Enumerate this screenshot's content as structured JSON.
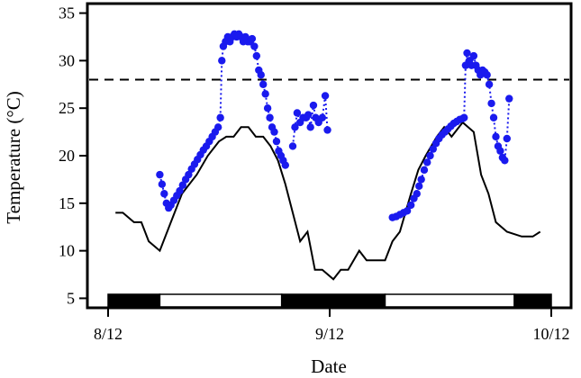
{
  "chart_data": {
    "type": "scatter",
    "xlabel": "Date",
    "ylabel": "Temperature (°C)",
    "xlim": [
      0,
      60
    ],
    "ylim": [
      4,
      36
    ],
    "x_ticks": [
      {
        "x": 0,
        "label": "8/12"
      },
      {
        "x": 30,
        "label": "9/12"
      },
      {
        "x": 60,
        "label": "10/12"
      }
    ],
    "y_ticks": [
      5,
      10,
      15,
      20,
      25,
      30,
      35
    ],
    "reference_line": {
      "y": 28,
      "style": "dashed"
    },
    "colors": {
      "line": "#000000",
      "points": "#1a1aee",
      "bar_dark": "#000000",
      "bar_light": "#ffffff"
    },
    "black_line": [
      [
        1,
        14
      ],
      [
        2,
        14
      ],
      [
        3.5,
        13
      ],
      [
        4.5,
        13
      ],
      [
        5.5,
        11
      ],
      [
        7,
        10
      ],
      [
        8.5,
        13
      ],
      [
        10,
        16
      ],
      [
        12,
        18
      ],
      [
        13.5,
        20
      ],
      [
        15,
        21.5
      ],
      [
        16,
        22
      ],
      [
        17,
        22
      ],
      [
        18,
        23
      ],
      [
        19,
        23
      ],
      [
        20,
        22
      ],
      [
        21,
        22
      ],
      [
        22,
        21
      ],
      [
        23,
        19.5
      ],
      [
        24,
        17
      ],
      [
        25,
        14
      ],
      [
        26,
        11
      ],
      [
        27,
        12
      ],
      [
        28,
        8
      ],
      [
        29,
        8
      ],
      [
        30.5,
        7
      ],
      [
        31.5,
        8
      ],
      [
        32.5,
        8
      ],
      [
        34,
        10
      ],
      [
        35,
        9
      ],
      [
        36,
        9
      ],
      [
        37.5,
        9
      ],
      [
        38.5,
        11
      ],
      [
        39.5,
        12
      ],
      [
        41,
        16
      ],
      [
        42,
        18.5
      ],
      [
        43,
        20
      ],
      [
        44.5,
        22
      ],
      [
        45.5,
        23
      ],
      [
        46.5,
        22
      ],
      [
        48,
        23.5
      ],
      [
        49.5,
        22.5
      ],
      [
        50.5,
        18
      ],
      [
        51.5,
        16
      ],
      [
        52.5,
        13
      ],
      [
        54,
        12
      ],
      [
        56,
        11.5
      ],
      [
        57.5,
        11.5
      ],
      [
        58.5,
        12
      ]
    ],
    "point_series": [
      {
        "points": [
          [
            7,
            18
          ],
          [
            7.3,
            17
          ],
          [
            7.6,
            16
          ],
          [
            7.9,
            15
          ],
          [
            8.2,
            14.5
          ],
          [
            8.5,
            14.8
          ],
          [
            8.9,
            15.3
          ],
          [
            9.3,
            15.8
          ],
          [
            9.7,
            16.3
          ],
          [
            10.1,
            16.9
          ],
          [
            10.5,
            17.5
          ],
          [
            10.9,
            18
          ],
          [
            11.3,
            18.6
          ],
          [
            11.7,
            19.1
          ],
          [
            12.1,
            19.6
          ],
          [
            12.5,
            20.1
          ],
          [
            12.9,
            20.6
          ],
          [
            13.3,
            21
          ],
          [
            13.7,
            21.5
          ],
          [
            14.1,
            22
          ],
          [
            14.5,
            22.5
          ],
          [
            14.9,
            23
          ],
          [
            15.2,
            24
          ],
          [
            15.4,
            30
          ],
          [
            15.6,
            31.5
          ],
          [
            15.9,
            32
          ],
          [
            16.2,
            32.5
          ],
          [
            16.5,
            32
          ],
          [
            16.8,
            32.5
          ],
          [
            17.1,
            32.8
          ],
          [
            17.4,
            32.5
          ],
          [
            17.7,
            32.8
          ],
          [
            18,
            32.5
          ],
          [
            18.3,
            32
          ],
          [
            18.6,
            32.5
          ],
          [
            18.9,
            32
          ],
          [
            19.2,
            32
          ],
          [
            19.5,
            32.3
          ],
          [
            19.8,
            31.5
          ],
          [
            20.1,
            30.5
          ],
          [
            20.4,
            29
          ],
          [
            20.7,
            28.5
          ],
          [
            21,
            27.5
          ],
          [
            21.3,
            26.5
          ],
          [
            21.6,
            25
          ],
          [
            21.9,
            24
          ],
          [
            22.2,
            23
          ],
          [
            22.5,
            22.5
          ],
          [
            22.8,
            21.5
          ],
          [
            23.1,
            20.5
          ],
          [
            23.4,
            20
          ],
          [
            23.7,
            19.5
          ],
          [
            24,
            19
          ]
        ]
      },
      {
        "points": [
          [
            25,
            21
          ],
          [
            25.3,
            23
          ],
          [
            25.6,
            24.5
          ],
          [
            26,
            23.5
          ],
          [
            26.4,
            24
          ],
          [
            26.8,
            24
          ],
          [
            27.1,
            24.3
          ],
          [
            27.4,
            23
          ],
          [
            27.8,
            25.3
          ],
          [
            28.1,
            24
          ],
          [
            28.5,
            23.5
          ],
          [
            29,
            24
          ],
          [
            29.4,
            26.3
          ],
          [
            29.7,
            22.7
          ]
        ]
      },
      {
        "points": [
          [
            38.5,
            13.5
          ],
          [
            39,
            13.6
          ],
          [
            39.5,
            13.8
          ],
          [
            40,
            14
          ],
          [
            40.5,
            14.2
          ],
          [
            41,
            14.8
          ],
          [
            41.4,
            15.5
          ],
          [
            41.8,
            16
          ],
          [
            42.1,
            16.8
          ],
          [
            42.4,
            17.5
          ],
          [
            42.8,
            18.5
          ],
          [
            43.2,
            19.3
          ],
          [
            43.6,
            20
          ],
          [
            44,
            20.7
          ],
          [
            44.4,
            21.3
          ],
          [
            44.8,
            21.8
          ],
          [
            45.2,
            22.2
          ],
          [
            45.6,
            22.5
          ],
          [
            46,
            22.8
          ],
          [
            46.4,
            23.1
          ],
          [
            46.8,
            23.4
          ],
          [
            47.2,
            23.6
          ],
          [
            47.6,
            23.8
          ],
          [
            48,
            23.9
          ],
          [
            48.2,
            24
          ],
          [
            48.4,
            29.5
          ],
          [
            48.6,
            30.8
          ],
          [
            48.9,
            30
          ],
          [
            49.2,
            29.5
          ],
          [
            49.5,
            30.5
          ],
          [
            49.8,
            29.5
          ],
          [
            50.1,
            29
          ],
          [
            50.4,
            28.5
          ],
          [
            50.7,
            29
          ],
          [
            51,
            28.8
          ],
          [
            51.3,
            28.5
          ],
          [
            51.6,
            27.5
          ],
          [
            51.9,
            25.5
          ],
          [
            52.2,
            24
          ],
          [
            52.5,
            22
          ],
          [
            52.8,
            21
          ],
          [
            53.1,
            20.5
          ],
          [
            53.4,
            19.8
          ],
          [
            53.7,
            19.5
          ],
          [
            54,
            21.8
          ],
          [
            54.3,
            26
          ]
        ]
      }
    ],
    "day_night_bar": [
      {
        "from": 0,
        "to": 7,
        "fill": "dark"
      },
      {
        "from": 7,
        "to": 23.5,
        "fill": "light"
      },
      {
        "from": 23.5,
        "to": 37.5,
        "fill": "dark"
      },
      {
        "from": 37.5,
        "to": 55,
        "fill": "light"
      },
      {
        "from": 55,
        "to": 60,
        "fill": "dark"
      }
    ]
  }
}
